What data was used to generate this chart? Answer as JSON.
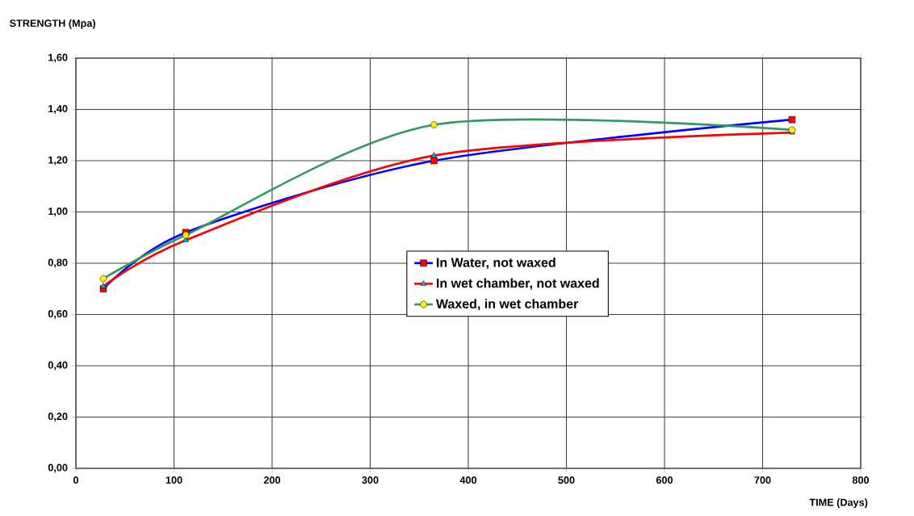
{
  "chart_data": {
    "type": "line",
    "xlabel": "TIME (Days)",
    "ylabel": "STRENGTH (Mpa)",
    "x": [
      28,
      112,
      365,
      730
    ],
    "series": [
      {
        "name": "In Water, not waxed",
        "color": "#0000ff",
        "marker": "square",
        "values": [
          0.7,
          0.92,
          1.2,
          1.36
        ]
      },
      {
        "name": "In wet chamber, not waxed",
        "color": "#ff0000",
        "marker": "triangle",
        "values": [
          0.71,
          0.89,
          1.22,
          1.31
        ]
      },
      {
        "name": "Waxed, in wet chamber",
        "color": "#339966",
        "marker": "circle",
        "values": [
          0.74,
          0.91,
          1.34,
          1.32
        ]
      }
    ],
    "xlim": [
      0,
      800
    ],
    "xticks": [
      0,
      100,
      200,
      300,
      400,
      500,
      600,
      700,
      800
    ],
    "ylim": [
      0,
      1.6
    ],
    "yticks": [
      {
        "value": 0,
        "label": "0,00"
      },
      {
        "value": 0.2,
        "label": "0,20"
      },
      {
        "value": 0.4,
        "label": "0,40"
      },
      {
        "value": 0.6,
        "label": "0,60"
      },
      {
        "value": 0.8,
        "label": "0,80"
      },
      {
        "value": 1.0,
        "label": "1,00"
      },
      {
        "value": 1.2,
        "label": "1,20"
      },
      {
        "value": 1.4,
        "label": "1,40"
      },
      {
        "value": 1.6,
        "label": "1,60"
      }
    ],
    "grid": true,
    "legend": "center",
    "line_style": "solid"
  }
}
